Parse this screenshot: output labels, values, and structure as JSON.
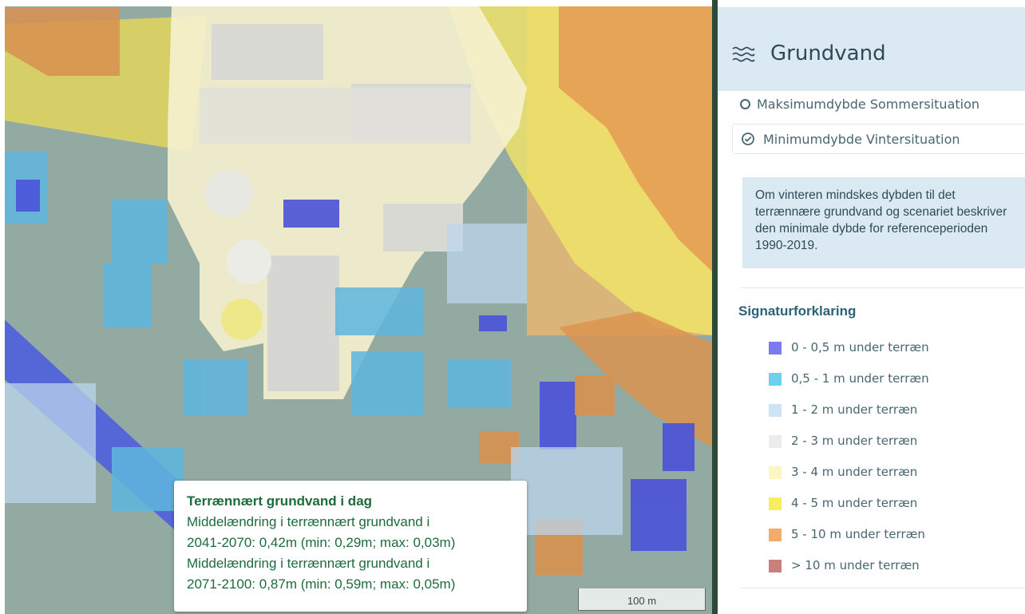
{
  "panel": {
    "title": "Grundvand",
    "options": [
      {
        "label": "Maksimumdybde Sommersituation",
        "selected": false
      },
      {
        "label": "Minimumdybde Vintersituation",
        "selected": true
      }
    ],
    "description": "Om vinteren mindskes dybden til det terrænnære grundvand og scenariet beskriver den minimale dybde for referenceperioden 1990-2019.",
    "legend_title": "Signaturforklaring",
    "legend": [
      {
        "label": "0 - 0,5 m under terræn",
        "color": "#7b7bef"
      },
      {
        "label": "0,5 - 1 m under terræn",
        "color": "#6fd0ee"
      },
      {
        "label": "1 - 2 m under terræn",
        "color": "#cfe3f6"
      },
      {
        "label": "2 - 3 m under terræn",
        "color": "#ececec"
      },
      {
        "label": "3 - 4 m under terræn",
        "color": "#fbf7c4"
      },
      {
        "label": "4 - 5 m under terræn",
        "color": "#f6ee5c"
      },
      {
        "label": "5 - 10 m under terræn",
        "color": "#f3ac6a"
      },
      {
        "label": "> 10 m under terræn",
        "color": "#c97f7a"
      }
    ]
  },
  "popup": {
    "title": "Terrænnært grundvand i dag",
    "lines": [
      "Middelændring i terrænnært grundvand i",
      "2041-2070: 0,42m (min: 0,29m; max: 0,03m)",
      "Middelændring i terrænnært grundvand i",
      "2071-2100: 0,87m (min: 0,59m; max: 0,05m)"
    ]
  },
  "scale": {
    "label": "100 m"
  }
}
